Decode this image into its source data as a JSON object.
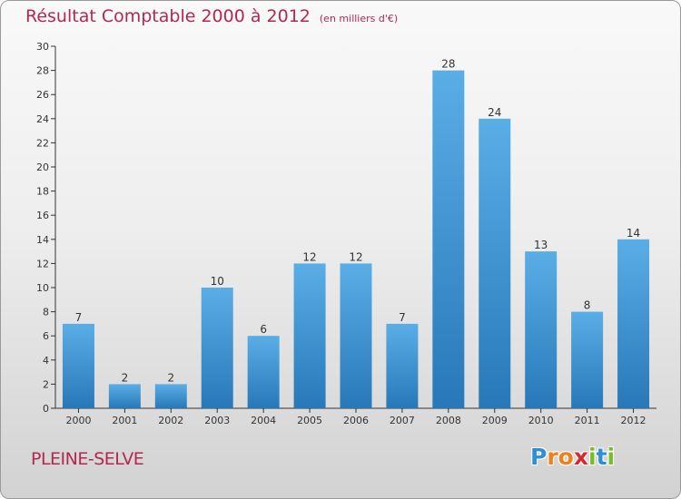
{
  "chart_data": {
    "type": "bar",
    "title": "Résultat Comptable 2000 à 2012",
    "subtitle": "(en milliers d'€)",
    "categories": [
      "2000",
      "2001",
      "2002",
      "2003",
      "2004",
      "2005",
      "2006",
      "2007",
      "2008",
      "2009",
      "2010",
      "2011",
      "2012"
    ],
    "values": [
      7,
      2,
      2,
      10,
      6,
      12,
      12,
      7,
      28,
      24,
      13,
      8,
      14
    ],
    "ylim": [
      0,
      30
    ],
    "yticks": [
      0,
      2,
      4,
      6,
      8,
      10,
      12,
      14,
      16,
      18,
      20,
      22,
      24,
      26,
      28,
      30
    ],
    "xlabel": "",
    "ylabel": "",
    "grid": false,
    "bar_color_top": "#5aaee6",
    "bar_color_bottom": "#2878b9"
  },
  "footer": {
    "commune": "PLEINE-SELVE",
    "logo_letters": [
      {
        "ch": "P",
        "color": "#2f8fd6"
      },
      {
        "ch": "r",
        "color": "#f07f1a"
      },
      {
        "ch": "o",
        "color": "#f07f1a"
      },
      {
        "ch": "x",
        "color": "#d9282e"
      },
      {
        "ch": "i",
        "color": "#7bbb2a"
      },
      {
        "ch": "t",
        "color": "#2f8fd6"
      },
      {
        "ch": "i",
        "color": "#7bbb2a"
      }
    ]
  },
  "colors": {
    "accent": "#b2294d",
    "axis": "#333333"
  }
}
